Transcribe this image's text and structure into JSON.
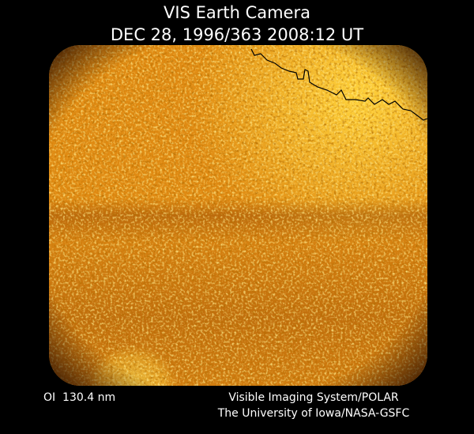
{
  "header": {
    "title": "VIS Earth Camera",
    "timestamp": "DEC 28, 1996/363 2008:12 UT"
  },
  "footer": {
    "filter": "OI  130.4 nm",
    "instrument": "Visible Imaging System/POLAR",
    "institution": "The University of Iowa/NASA-GSFC"
  }
}
